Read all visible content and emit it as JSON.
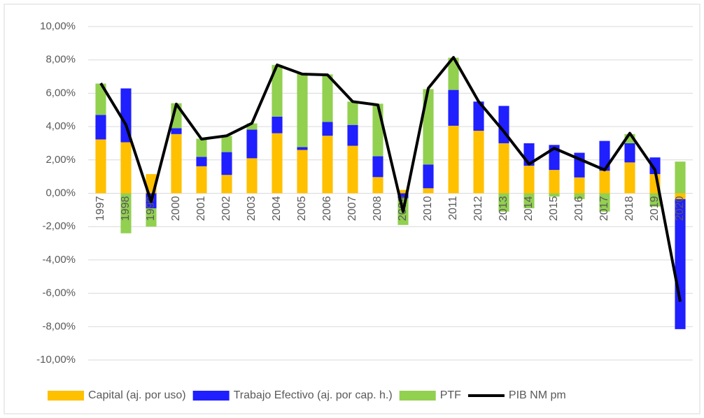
{
  "chart_data": {
    "type": "bar",
    "categories": [
      "1997",
      "1998",
      "1999",
      "2000",
      "2001",
      "2002",
      "2003",
      "2004",
      "2005",
      "2006",
      "2007",
      "2008",
      "2009",
      "2010",
      "2011",
      "2012",
      "2013",
      "2014",
      "2015",
      "2016",
      "2017",
      "2018",
      "2019",
      "2020"
    ],
    "series": [
      {
        "name": "Capital (aj. por uso)",
        "color": "#ffc000",
        "values": [
          3.23,
          3.06,
          1.15,
          3.55,
          1.62,
          1.1,
          2.1,
          3.6,
          2.6,
          3.45,
          2.85,
          0.97,
          0.2,
          0.3,
          4.05,
          3.75,
          3.0,
          1.65,
          1.4,
          0.95,
          1.35,
          1.85,
          1.15,
          -0.35
        ]
      },
      {
        "name": "Trabajo Efectivo (aj. por cap. h.)",
        "color": "#1f1fff",
        "values": [
          1.47,
          3.23,
          -0.9,
          0.35,
          0.56,
          1.37,
          1.72,
          1.0,
          0.17,
          0.83,
          1.25,
          1.25,
          -0.3,
          1.42,
          2.15,
          1.75,
          2.24,
          1.35,
          1.5,
          1.48,
          1.79,
          1.15,
          1.0,
          -7.8
        ]
      },
      {
        "name": "PTF",
        "color": "#92d050",
        "values": [
          1.88,
          -2.4,
          -1.1,
          1.5,
          1.09,
          0.97,
          0.37,
          3.1,
          4.43,
          2.85,
          1.4,
          3.15,
          -1.6,
          4.53,
          1.93,
          0,
          -1.1,
          -0.9,
          -0.2,
          -0.35,
          -1.1,
          0.55,
          -0.8,
          1.9
        ]
      },
      {
        "name": "PIB NM pm",
        "color": "#000000",
        "type": "line",
        "values": [
          6.6,
          4.1,
          -0.5,
          5.35,
          3.25,
          3.45,
          4.2,
          7.7,
          7.15,
          7.1,
          5.5,
          5.3,
          -1.1,
          6.3,
          8.15,
          5.5,
          3.7,
          1.75,
          2.7,
          2.05,
          1.4,
          3.6,
          1.4,
          -6.5
        ]
      }
    ],
    "ylim": [
      -10,
      10
    ],
    "yticks": [
      {
        "value": -10,
        "label": "-10,00%"
      },
      {
        "value": -8,
        "label": "-8,00%"
      },
      {
        "value": -6,
        "label": "-6,00%"
      },
      {
        "value": -4,
        "label": "-4,00%"
      },
      {
        "value": -2,
        "label": "-2,00%"
      },
      {
        "value": 0,
        "label": "0,00%"
      },
      {
        "value": 2,
        "label": "2,00%"
      },
      {
        "value": 4,
        "label": "4,00%"
      },
      {
        "value": 6,
        "label": "6,00%"
      },
      {
        "value": 8,
        "label": "8,00%"
      },
      {
        "value": 10,
        "label": "10,00%"
      }
    ],
    "legend": "bottom",
    "stacked": true
  }
}
